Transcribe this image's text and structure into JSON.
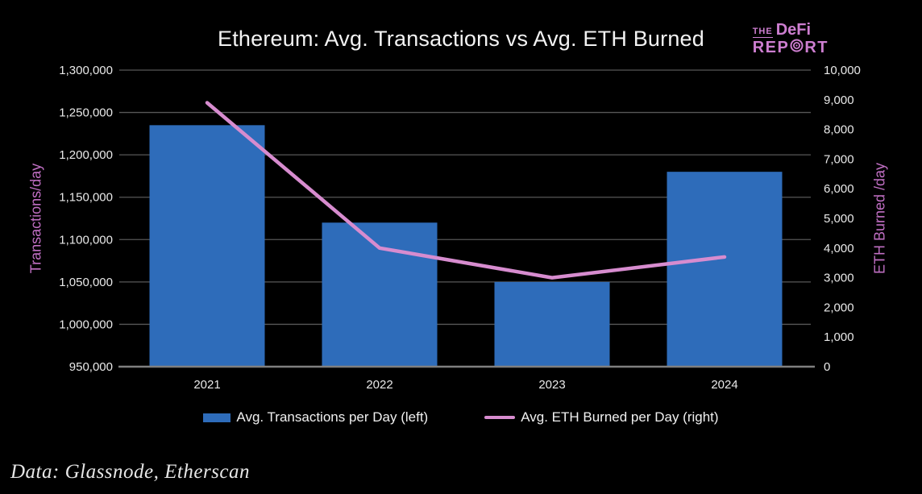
{
  "page": {
    "background": "#000000"
  },
  "title": "Ethereum: Avg. Transactions vs Avg. ETH Burned",
  "logo": {
    "the": "THE",
    "defi": "DeFi",
    "rep": "REP",
    "rt": "RT",
    "bullseye_icon": "bullseye-icon",
    "color": "#cd7ed0"
  },
  "footer": "Data: Glassnode, Etherscan",
  "colors": {
    "background": "#000000",
    "bar_blue": "#2e6cba",
    "line_pink": "#d78ccf",
    "axis_title_pink": "#c06fc3",
    "tick_label": "#e9e9e9",
    "gridline": "#575757",
    "axis_line": "#7f7f7f",
    "title_text": "#f3f3f3"
  },
  "chart_data": {
    "type": "bar",
    "title": "Ethereum: Avg. Transactions vs Avg. ETH Burned",
    "categories": [
      "2021",
      "2022",
      "2023",
      "2024"
    ],
    "series": [
      {
        "name": "Avg. Transactions per Day (left)",
        "type": "bar",
        "axis": "left",
        "color": "#2e6cba",
        "values": [
          1235000,
          1120000,
          1050000,
          1180000
        ]
      },
      {
        "name": "Avg. ETH Burned per Day (right)",
        "type": "line",
        "axis": "right",
        "color": "#d78ccf",
        "values": [
          8900,
          4000,
          3000,
          3700
        ]
      }
    ],
    "left_axis": {
      "label": "Transactions/day",
      "min": 950000,
      "max": 1300000,
      "step": 50000,
      "ticks": [
        "950,000",
        "1,000,000",
        "1,050,000",
        "1,100,000",
        "1,150,000",
        "1,200,000",
        "1,250,000",
        "1,300,000"
      ]
    },
    "right_axis": {
      "label": "ETH Burned /day",
      "min": 0,
      "max": 10000,
      "step": 1000,
      "ticks": [
        "0",
        "1,000",
        "2,000",
        "3,000",
        "4,000",
        "5,000",
        "6,000",
        "7,000",
        "8,000",
        "9,000",
        "10,000"
      ]
    },
    "grid": true,
    "legend_position": "bottom"
  }
}
